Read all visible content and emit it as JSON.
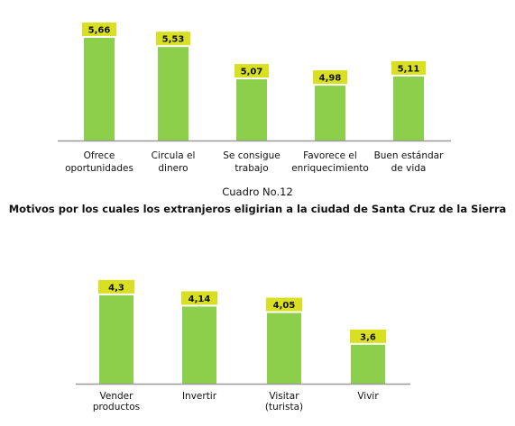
{
  "colors": {
    "bar": "#8ccf4a",
    "label_bg": "#d9e021",
    "axis": "#9a9a9a",
    "text": "#111111"
  },
  "caption": {
    "number": "Cuadro No.12",
    "title": "Motivos por los cuales los extranjeros eligirian a la ciudad de Santa Cruz de la Sierra"
  },
  "chart_data": [
    {
      "type": "bar",
      "title": "",
      "categories": [
        [
          "Ofrece",
          "oportunidades"
        ],
        [
          "Circula el",
          "dinero"
        ],
        [
          "Se consigue",
          "trabajo"
        ],
        [
          "Favorece el",
          "enriquecimiento"
        ],
        [
          "Buen estándar",
          "de vida"
        ]
      ],
      "values": [
        5.66,
        5.53,
        5.07,
        4.98,
        5.11
      ],
      "value_labels": [
        "5,66",
        "5,53",
        "5,07",
        "4,98",
        "5,11"
      ],
      "ylim": [
        4.2,
        5.75
      ],
      "grid": false,
      "legend": "none"
    },
    {
      "type": "bar",
      "title": "",
      "categories": [
        [
          "Vender",
          "productos"
        ],
        [
          "Invertir"
        ],
        [
          "Visitar",
          "(turista)"
        ],
        [
          "Vivir"
        ]
      ],
      "values": [
        4.3,
        4.14,
        4.05,
        3.6
      ],
      "value_labels": [
        "4,3",
        "4,14",
        "4,05",
        "3,6"
      ],
      "ylim": [
        3.05,
        4.4
      ],
      "grid": false,
      "legend": "none"
    }
  ]
}
